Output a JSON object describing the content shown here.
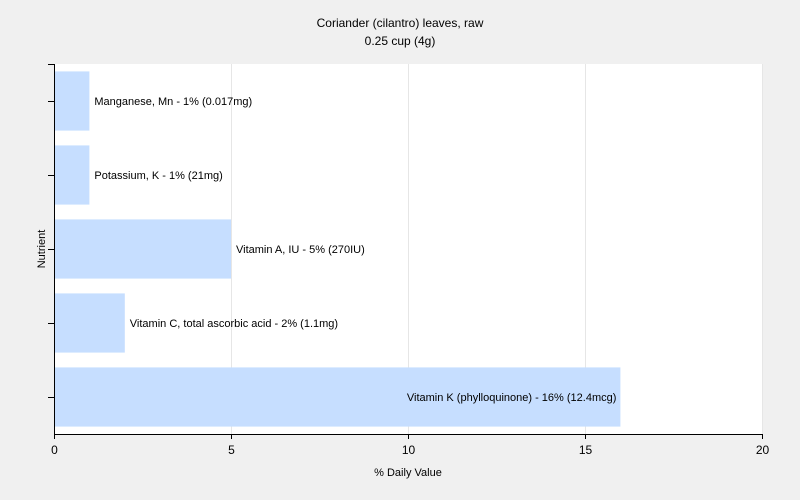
{
  "chart_data": {
    "type": "bar",
    "orientation": "horizontal",
    "title": "Coriander (cilantro) leaves, raw",
    "subtitle": "0.25 cup (4g)",
    "xlabel": "% Daily Value",
    "ylabel": "Nutrient",
    "xlim": [
      0,
      20
    ],
    "xticks": [
      0,
      5,
      10,
      15,
      20
    ],
    "grid": true,
    "legend": "none",
    "bar_color": "#c6deff",
    "categories": [
      "Manganese, Mn - 1% (0.017mg)",
      "Potassium, K - 1% (21mg)",
      "Vitamin A, IU - 5% (270IU)",
      "Vitamin C, total ascorbic acid - 2% (1.1mg)",
      "Vitamin K (phylloquinone) - 16% (12.4mcg)"
    ],
    "values": [
      1,
      1,
      5,
      2,
      16
    ]
  }
}
